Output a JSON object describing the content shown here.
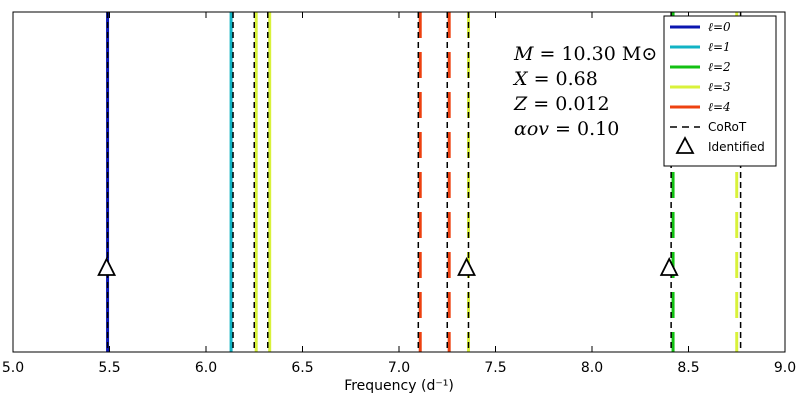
{
  "chart_data": {
    "type": "line",
    "xlabel": "Frequency (d⁻¹)",
    "ylabel": "",
    "xlim": [
      5.0,
      9.0
    ],
    "xticks": [
      "5.0",
      "5.5",
      "6.0",
      "6.5",
      "7.0",
      "7.5",
      "8.0",
      "8.5",
      "9.0"
    ],
    "modes": [
      {
        "degree": 0,
        "frequency": 5.49,
        "style": "solid"
      },
      {
        "degree": 1,
        "frequency": 6.13,
        "style": "solid"
      },
      {
        "degree": 3,
        "frequency": 6.26,
        "style": "solid"
      },
      {
        "degree": 3,
        "frequency": 6.33,
        "style": "solid"
      },
      {
        "degree": 4,
        "frequency": 7.11,
        "style": "dashed"
      },
      {
        "degree": 4,
        "frequency": 7.26,
        "style": "dashed"
      },
      {
        "degree": 3,
        "frequency": 7.36,
        "style": "dashed"
      },
      {
        "degree": 2,
        "frequency": 8.42,
        "style": "dashed"
      },
      {
        "degree": 3,
        "frequency": 8.75,
        "style": "dashed"
      }
    ],
    "corot": [
      5.49,
      6.14,
      6.25,
      6.32,
      7.1,
      7.25,
      7.36,
      8.41,
      8.77
    ],
    "identified": [
      5.485,
      7.35,
      8.4
    ],
    "legend": [
      {
        "label": "ℓ=0",
        "kind": "line",
        "color": "#0b16b0"
      },
      {
        "label": "ℓ=1",
        "kind": "line",
        "color": "#11b3c4"
      },
      {
        "label": "ℓ=2",
        "kind": "line",
        "color": "#12c012"
      },
      {
        "label": "ℓ=3",
        "kind": "line",
        "color": "#d9f23b"
      },
      {
        "label": "ℓ=4",
        "kind": "line",
        "color": "#ee4110"
      },
      {
        "label": "CoRoT",
        "kind": "dashed",
        "color": "#000000"
      },
      {
        "label": "Identified",
        "kind": "triangle",
        "color": "#000000"
      }
    ],
    "parameters": [
      {
        "symbol": "M",
        "value": "10.30 M⊙"
      },
      {
        "symbol": "X",
        "value": "0.68"
      },
      {
        "symbol": "Z",
        "value": "0.012"
      },
      {
        "symbol": "αov",
        "value": "0.10"
      }
    ]
  },
  "colors": {
    "l0": "#0b16b0",
    "l1": "#11b3c4",
    "l2": "#12c012",
    "l3": "#d9f23b",
    "l4": "#ee4110",
    "corot": "#000000"
  }
}
